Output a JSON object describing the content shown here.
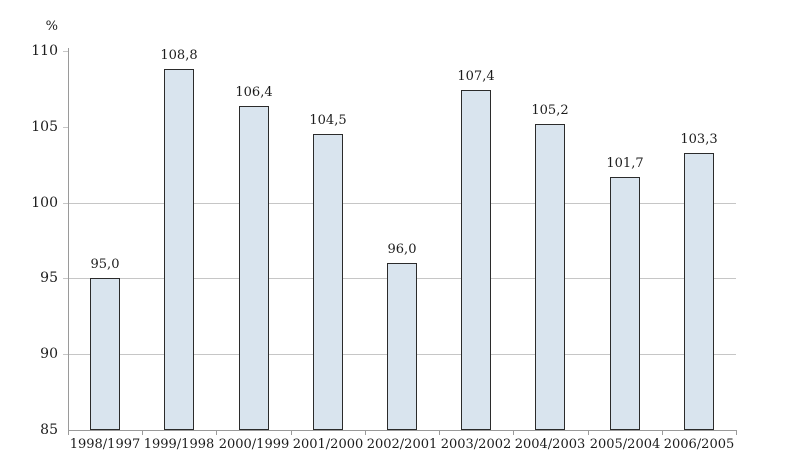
{
  "page": {
    "background": "#ffffff"
  },
  "chart_data": {
    "type": "bar",
    "title": "",
    "xlabel": "",
    "ylabel": "%",
    "categories": [
      "1998/1997",
      "1999/1998",
      "2000/1999",
      "2001/2000",
      "2002/2001",
      "2003/2002",
      "2004/2003",
      "2005/2004",
      "2006/2005"
    ],
    "values": [
      95.0,
      108.8,
      106.4,
      104.5,
      96.0,
      107.4,
      105.2,
      101.7,
      103.3
    ],
    "value_labels": [
      "95,0",
      "108,8",
      "106,4",
      "104,5",
      "96,0",
      "107,4",
      "105,2",
      "101,7",
      "103,3"
    ],
    "ylim": [
      85,
      110
    ],
    "yticks": [
      85,
      90,
      95,
      100,
      105,
      110
    ],
    "gridlines_at": [
      90,
      95,
      100
    ],
    "legend": "none",
    "grid": "horizontal-partial",
    "colors": {
      "bar_fill": "#d9e4ee",
      "bar_border": "#2b2b2b",
      "gridline": "#c6c6c6",
      "axis": "#9a9a9a",
      "text": "#1c1c1c",
      "background": "#ffffff"
    }
  }
}
